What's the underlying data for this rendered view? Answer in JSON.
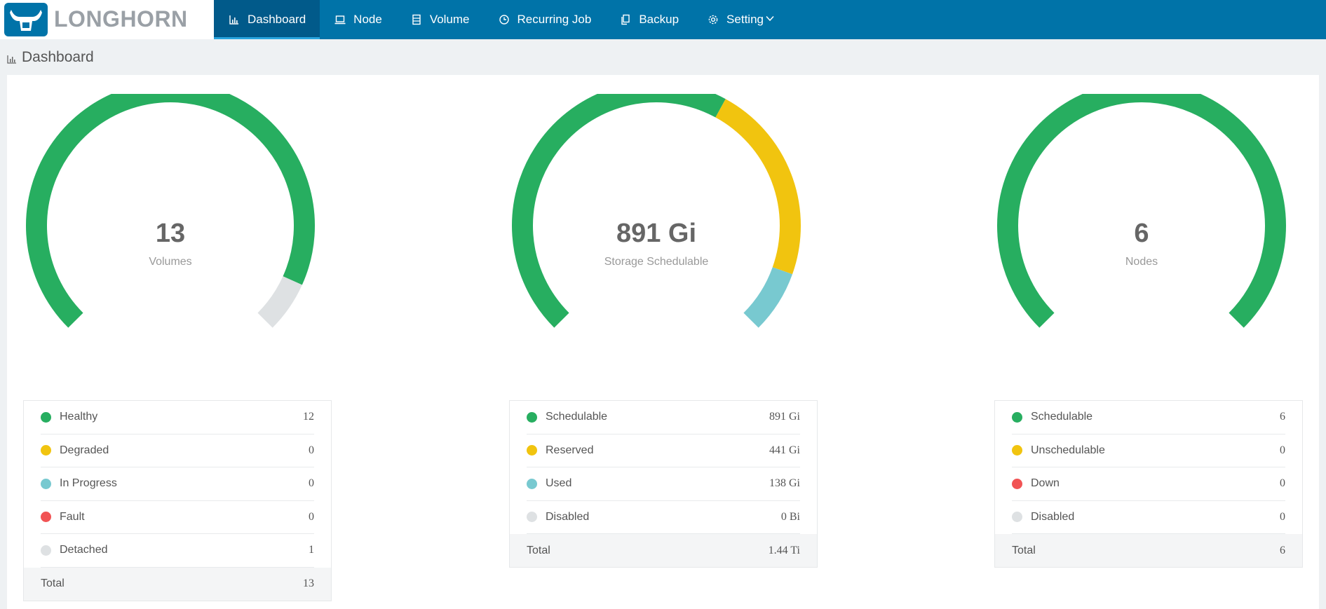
{
  "brand": {
    "name": "LONGHORN"
  },
  "nav": {
    "items": [
      {
        "label": "Dashboard",
        "icon": "bar-chart-icon",
        "active": true
      },
      {
        "label": "Node",
        "icon": "laptop-icon"
      },
      {
        "label": "Volume",
        "icon": "database-icon"
      },
      {
        "label": "Recurring Job",
        "icon": "clock-icon"
      },
      {
        "label": "Backup",
        "icon": "copy-icon"
      },
      {
        "label": "Setting",
        "icon": "gear-icon",
        "dropdown": true
      }
    ]
  },
  "page": {
    "title": "Dashboard"
  },
  "colors": {
    "green": "#27ae60",
    "yellow": "#f1c40f",
    "cyan": "#78c9d0",
    "red": "#f15354",
    "gray": "#dee1e3"
  },
  "panels": [
    {
      "id": "volumes",
      "value": "13",
      "label": "Volumes",
      "segments": [
        {
          "name": "Healthy",
          "amount": 12,
          "color": "#27ae60"
        },
        {
          "name": "Detached",
          "amount": 1,
          "color": "#dee1e3"
        }
      ],
      "rows": [
        {
          "label": "Healthy",
          "value": "12",
          "color": "#27ae60"
        },
        {
          "label": "Degraded",
          "value": "0",
          "color": "#f1c40f"
        },
        {
          "label": "In Progress",
          "value": "0",
          "color": "#78c9d0"
        },
        {
          "label": "Fault",
          "value": "0",
          "color": "#f15354"
        },
        {
          "label": "Detached",
          "value": "1",
          "color": "#dee1e3"
        }
      ],
      "total": {
        "label": "Total",
        "value": "13"
      }
    },
    {
      "id": "storage",
      "value": "891 Gi",
      "label": "Storage Schedulable",
      "segments": [
        {
          "name": "Schedulable",
          "amount": 891,
          "color": "#27ae60"
        },
        {
          "name": "Reserved",
          "amount": 441,
          "color": "#f1c40f"
        },
        {
          "name": "Used",
          "amount": 138,
          "color": "#78c9d0"
        }
      ],
      "rows": [
        {
          "label": "Schedulable",
          "value": "891 Gi",
          "color": "#27ae60"
        },
        {
          "label": "Reserved",
          "value": "441 Gi",
          "color": "#f1c40f"
        },
        {
          "label": "Used",
          "value": "138 Gi",
          "color": "#78c9d0"
        },
        {
          "label": "Disabled",
          "value": "0 Bi",
          "color": "#dee1e3"
        }
      ],
      "total": {
        "label": "Total",
        "value": "1.44 Ti"
      }
    },
    {
      "id": "nodes",
      "value": "6",
      "label": "Nodes",
      "segments": [
        {
          "name": "Schedulable",
          "amount": 6,
          "color": "#27ae60"
        }
      ],
      "rows": [
        {
          "label": "Schedulable",
          "value": "6",
          "color": "#27ae60"
        },
        {
          "label": "Unschedulable",
          "value": "0",
          "color": "#f1c40f"
        },
        {
          "label": "Down",
          "value": "0",
          "color": "#f15354"
        },
        {
          "label": "Disabled",
          "value": "0",
          "color": "#dee1e3"
        }
      ],
      "total": {
        "label": "Total",
        "value": "6"
      }
    }
  ]
}
